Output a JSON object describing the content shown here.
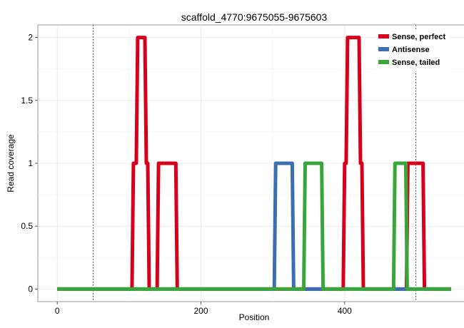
{
  "chart_data": {
    "type": "line",
    "title": "scaffold_4770:9675055-9675603",
    "xlabel": "Position",
    "ylabel": "Read coverage",
    "xlim": [
      -27,
      575
    ],
    "ylim": [
      -0.1,
      2.1
    ],
    "x_ticks": [
      0,
      200,
      400
    ],
    "x_tick_labels": [
      "0",
      "200",
      "400"
    ],
    "y_ticks": [
      0,
      0.5,
      1,
      1.5,
      2
    ],
    "y_tick_labels": [
      "0",
      "0.5",
      "1",
      "1.5",
      "2"
    ],
    "grid": true,
    "legend_position": "top-right",
    "vlines": [
      50,
      499
    ],
    "series": [
      {
        "name": "Sense, perfect",
        "color": "#d7001b",
        "x": [
          0,
          104,
          106,
          110,
          112,
          122,
          124,
          126,
          128,
          139,
          141,
          165,
          167,
          398,
          400,
          402,
          404,
          420,
          422,
          424,
          426,
          486,
          488,
          509,
          511,
          548
        ],
        "y": [
          0,
          0,
          1,
          1,
          2,
          2,
          1,
          1,
          0,
          0,
          1,
          1,
          0,
          0,
          1,
          1,
          2,
          2,
          1,
          1,
          0,
          0,
          1,
          1,
          0,
          0
        ]
      },
      {
        "name": "Antisense",
        "color": "#3a6fb0",
        "x": [
          0,
          302,
          304,
          327,
          329,
          548
        ],
        "y": [
          0,
          0,
          1,
          1,
          0,
          0
        ]
      },
      {
        "name": "Sense, tailed",
        "color": "#3aa53a",
        "x": [
          0,
          343,
          345,
          368,
          370,
          468,
          470,
          485,
          487,
          548
        ],
        "y": [
          0,
          0,
          1,
          1,
          0,
          0,
          1,
          1,
          0,
          0
        ]
      }
    ]
  }
}
